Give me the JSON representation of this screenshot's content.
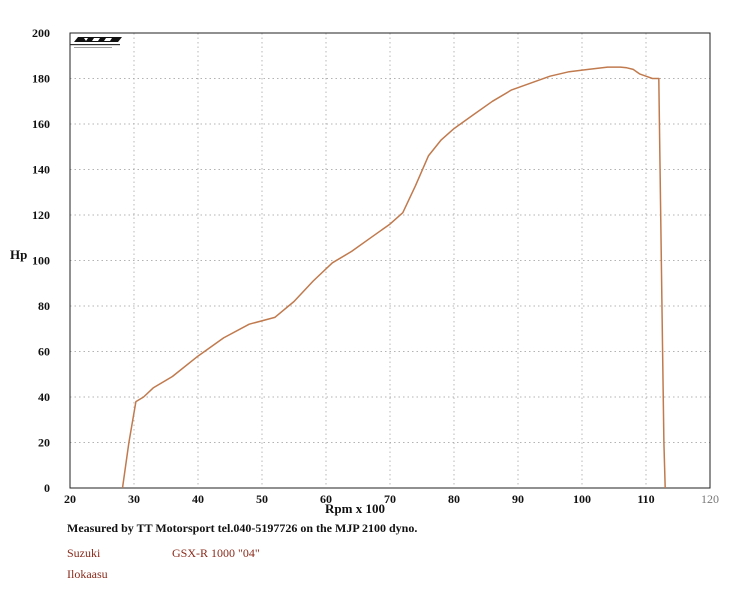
{
  "chart_data": {
    "type": "line",
    "title": "",
    "xlabel": "Rpm x 100",
    "ylabel": "Hp",
    "xlim": [
      20,
      120
    ],
    "ylim": [
      0,
      200
    ],
    "grid": true,
    "x_ticks": [
      20,
      30,
      40,
      50,
      60,
      70,
      80,
      90,
      100,
      110,
      120
    ],
    "y_ticks": [
      0,
      20,
      40,
      60,
      80,
      100,
      120,
      140,
      160,
      180,
      200
    ],
    "series": [
      {
        "name": "",
        "color": "#c07a4e",
        "x": [
          28.2,
          29.2,
          30.3,
          31.5,
          33,
          36,
          40,
          44,
          48,
          52,
          55,
          58,
          61,
          64,
          67,
          70,
          72,
          74,
          76,
          78,
          80,
          83,
          86,
          89,
          92,
          95,
          98,
          101,
          104,
          106,
          107,
          108,
          109,
          110,
          111,
          112,
          112.3,
          112.6,
          112.8,
          113
        ],
        "values": [
          0,
          20,
          38,
          40,
          44,
          49,
          58,
          66,
          72,
          75,
          82,
          91,
          99,
          104,
          110,
          116,
          121,
          133,
          146,
          153,
          158,
          164,
          170,
          175,
          178,
          181,
          183,
          184,
          185,
          185,
          184.7,
          184,
          182,
          181,
          180,
          180,
          120,
          60,
          20,
          0
        ]
      }
    ]
  },
  "texts": {
    "caption": "Measured by TT Motorsport tel.040-5197726 on the MJP 2100 dyno.",
    "make": "Suzuki",
    "model": "GSX-R 1000 \"04\"",
    "method": "Ilokaasu"
  },
  "colors": {
    "curve": "#c07a4e",
    "grid": "#9a9a9a",
    "frame": "#222222",
    "legend_text": "#8a2a1a"
  }
}
